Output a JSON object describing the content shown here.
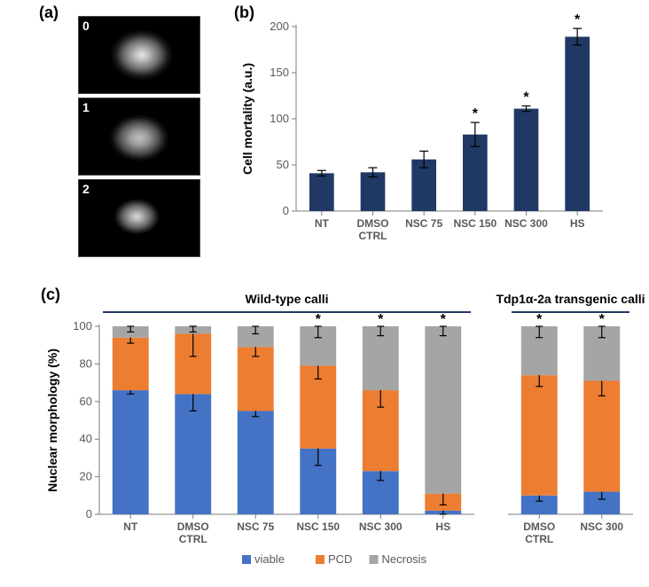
{
  "colors": {
    "bar_b": "#203864",
    "viable": "#4472c4",
    "pcd": "#ed7d31",
    "necrosis": "#a5a5a5",
    "axis": "#7b7b7b",
    "tick_text": "#595959",
    "background": "#ffffff"
  },
  "fonts": {
    "label_pt": 14,
    "tick_pt": 13,
    "cat_pt": 12,
    "panel_pt": 18
  },
  "panels": {
    "a": {
      "label": "(a)",
      "images": [
        {
          "corner": "0"
        },
        {
          "corner": "1"
        },
        {
          "corner": "2"
        }
      ]
    },
    "b": {
      "label": "(b)",
      "type": "bar",
      "ylabel": "Cell mortality (a.u.)",
      "ylim": [
        0,
        200
      ],
      "ytick_step": 50,
      "categories": [
        "NT",
        "DMSO\nCTRL",
        "NSC 75",
        "NSC 150",
        "NSC 300",
        "HS"
      ],
      "values": [
        41,
        42,
        56,
        83,
        111,
        189
      ],
      "err": [
        3,
        5,
        9,
        13,
        3,
        9
      ],
      "significant": [
        false,
        false,
        false,
        true,
        true,
        true
      ],
      "bar_color": "#203864",
      "bar_width": 0.48
    },
    "c": {
      "label": "(c)",
      "type": "stacked-bar",
      "ylabel": "Nuclear morphology (%)",
      "ylim": [
        0,
        100
      ],
      "ytick_step": 20,
      "series": [
        "viable",
        "PCD",
        "Necrosis"
      ],
      "series_colors": {
        "viable": "#4472c4",
        "PCD": "#ed7d31",
        "Necrosis": "#a5a5a5"
      },
      "legend_prefix": "■",
      "groups": [
        {
          "title": "Wild-type calli",
          "categories": [
            "NT",
            "DMSO\nCTRL",
            "NSC 75",
            "NSC 150",
            "NSC 300",
            "HS"
          ],
          "data": {
            "viable": [
              66,
              64,
              55,
              35,
              23,
              2
            ],
            "PCD": [
              28,
              32,
              34,
              44,
              43,
              9
            ],
            "Necrosis": [
              6,
              4,
              11,
              21,
              34,
              89
            ]
          },
          "err": {
            "viable": [
              2,
              9,
              3,
              9,
              5,
              2
            ],
            "PCD": [
              3,
              12,
              5,
              7,
              9,
              6
            ],
            "Necrosis": [
              3,
              3,
              4,
              6,
              5,
              5
            ]
          },
          "sig": {
            "viable": [
              false,
              false,
              false,
              true,
              true,
              false
            ],
            "PCD": [
              false,
              false,
              false,
              true,
              true,
              true
            ],
            "Necrosis": [
              false,
              false,
              false,
              true,
              true,
              true
            ]
          }
        },
        {
          "title": "Tdp1α-2a transgenic calli",
          "categories": [
            "DMSO\nCTRL",
            "NSC 300"
          ],
          "data": {
            "viable": [
              10,
              12
            ],
            "PCD": [
              64,
              59
            ],
            "Necrosis": [
              26,
              29
            ]
          },
          "err": {
            "viable": [
              3,
              4
            ],
            "PCD": [
              6,
              8
            ],
            "Necrosis": [
              6,
              6
            ]
          },
          "sig": {
            "viable": [
              true,
              true
            ],
            "PCD": [
              true,
              true
            ],
            "Necrosis": [
              true,
              true
            ]
          }
        }
      ],
      "bar_width": 0.58
    }
  }
}
